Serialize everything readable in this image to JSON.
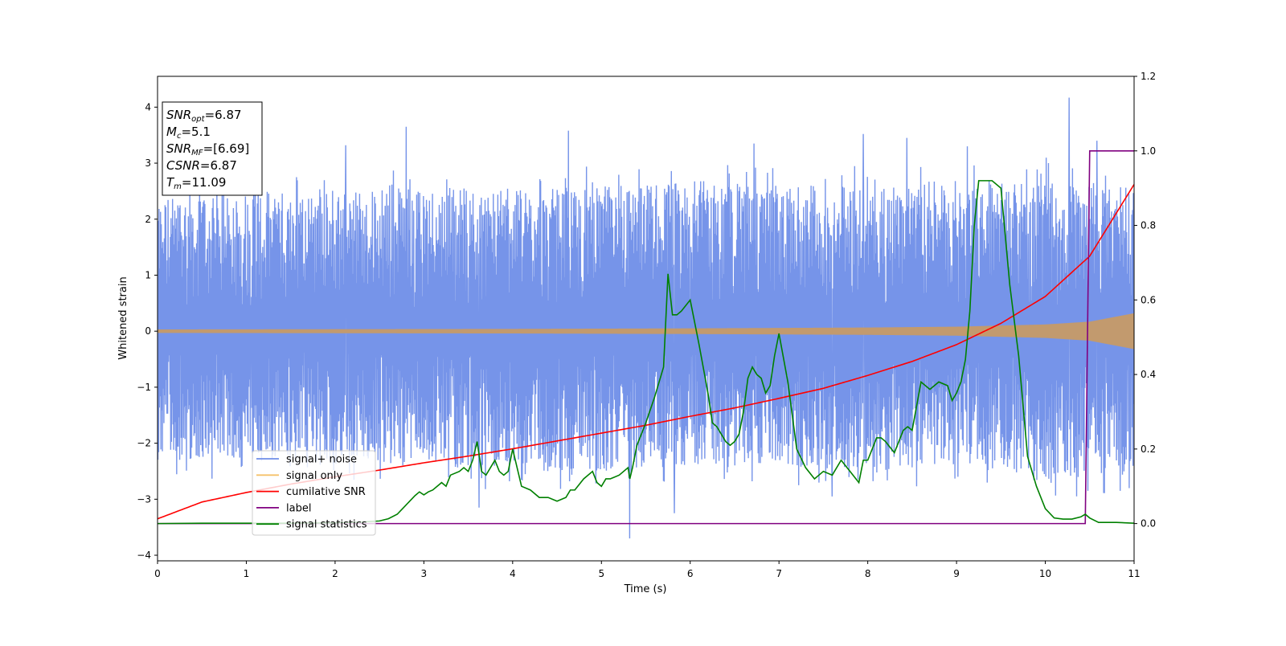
{
  "chart_data": {
    "type": "line",
    "xlabel": "Time (s)",
    "ylabel": "Whitened strain",
    "xlim": [
      0,
      11
    ],
    "ylim": [
      -4.1,
      4.55
    ],
    "y2lim": [
      -0.1,
      1.2
    ],
    "grid": false,
    "legend_position": "lower-left",
    "x_ticks": [
      "0",
      "1",
      "2",
      "3",
      "4",
      "5",
      "6",
      "7",
      "8",
      "9",
      "10",
      "11"
    ],
    "y_ticks": [
      "4",
      "3",
      "2",
      "1",
      "0",
      "−1",
      "−2",
      "−3",
      "−4"
    ],
    "y2_ticks": [
      "1.2",
      "1.0",
      "0.8",
      "0.6",
      "0.4",
      "0.2",
      "0.0"
    ],
    "info_box": [
      {
        "base": "SNR",
        "sub": "opt",
        "rest": "=6.87"
      },
      {
        "base": "M",
        "sub": "c",
        "rest": "=5.1"
      },
      {
        "base": "SNR",
        "sub": "MF",
        "rest": "=[6.69]"
      },
      {
        "base": "CSNR",
        "sub": "",
        "rest": "=6.87"
      },
      {
        "base": "T",
        "sub": "m",
        "rest": "=11.09"
      }
    ],
    "series": [
      {
        "name": "signal+ noise",
        "color": "#6f8ee8",
        "axis": "left",
        "description_envelope": {
          "x": [
            0,
            1,
            2,
            3,
            4,
            5,
            6,
            7,
            8,
            9,
            10,
            11
          ],
          "typical_upper": [
            2.4,
            2.5,
            2.5,
            2.6,
            2.5,
            2.6,
            2.7,
            2.6,
            2.6,
            2.7,
            2.7,
            2.6
          ],
          "typical_lower": [
            -2.3,
            -2.3,
            -2.4,
            -2.4,
            -2.5,
            -2.5,
            -2.4,
            -2.4,
            -2.5,
            -2.4,
            -2.6,
            -2.5
          ]
        },
        "spikes": [
          {
            "x": 2.8,
            "y": 3.65
          },
          {
            "x": 4.63,
            "y": 3.58
          },
          {
            "x": 7.95,
            "y": 3.52
          },
          {
            "x": 10.27,
            "y": 4.17
          },
          {
            "x": 10.58,
            "y": 3.4
          },
          {
            "x": 5.32,
            "y": -3.7
          },
          {
            "x": 5.82,
            "y": -3.25
          },
          {
            "x": 3.62,
            "y": -3.15
          },
          {
            "x": 1.1,
            "y": 3.3
          },
          {
            "x": 2.12,
            "y": 3.32
          },
          {
            "x": 6.72,
            "y": 3.35
          },
          {
            "x": 8.44,
            "y": 3.45
          },
          {
            "x": 9.12,
            "y": 3.3
          },
          {
            "x": 10.48,
            "y": -2.85
          },
          {
            "x": 7.6,
            "y": -2.95
          }
        ]
      },
      {
        "name": "signal only",
        "color": "#f5c26b",
        "axis": "left",
        "envelope_x": [
          0,
          2,
          4,
          6,
          8,
          9,
          10,
          10.5,
          11
        ],
        "envelope_amp": [
          0.03,
          0.035,
          0.04,
          0.05,
          0.065,
          0.08,
          0.12,
          0.17,
          0.32
        ]
      },
      {
        "name": "cumilative SNR",
        "color": "#ff0000",
        "axis": "left",
        "x": [
          0,
          0.5,
          1,
          1.5,
          2,
          2.5,
          3,
          3.5,
          4,
          4.5,
          5,
          5.5,
          6,
          6.5,
          7,
          7.5,
          8,
          8.5,
          9,
          9.5,
          10,
          10.5,
          11
        ],
        "y": [
          -3.35,
          -3.05,
          -2.88,
          -2.73,
          -2.6,
          -2.48,
          -2.35,
          -2.23,
          -2.1,
          -1.96,
          -1.82,
          -1.68,
          -1.52,
          -1.37,
          -1.2,
          -1.02,
          -0.79,
          -0.54,
          -0.24,
          0.14,
          0.62,
          1.34,
          2.62
        ]
      },
      {
        "name": "label",
        "color": "#800080",
        "axis": "right",
        "x": [
          0,
          10.45,
          10.5,
          11
        ],
        "y": [
          0,
          0,
          1,
          1
        ]
      },
      {
        "name": "signal statistics",
        "color": "#008000",
        "axis": "right",
        "x": [
          0,
          0.5,
          1,
          1.5,
          2,
          2.3,
          2.5,
          2.6,
          2.7,
          2.8,
          2.9,
          2.95,
          3.0,
          3.05,
          3.1,
          3.2,
          3.25,
          3.3,
          3.4,
          3.45,
          3.5,
          3.55,
          3.6,
          3.65,
          3.7,
          3.75,
          3.8,
          3.85,
          3.9,
          3.95,
          4.0,
          4.1,
          4.2,
          4.3,
          4.4,
          4.5,
          4.6,
          4.65,
          4.7,
          4.8,
          4.9,
          4.95,
          5.0,
          5.05,
          5.1,
          5.2,
          5.3,
          5.32,
          5.35,
          5.4,
          5.5,
          5.6,
          5.7,
          5.75,
          5.8,
          5.85,
          5.9,
          6.0,
          6.1,
          6.2,
          6.25,
          6.3,
          6.35,
          6.4,
          6.45,
          6.5,
          6.55,
          6.6,
          6.65,
          6.7,
          6.75,
          6.8,
          6.85,
          6.9,
          6.95,
          7.0,
          7.1,
          7.2,
          7.3,
          7.4,
          7.5,
          7.6,
          7.7,
          7.8,
          7.9,
          7.95,
          8.0,
          8.1,
          8.15,
          8.2,
          8.3,
          8.4,
          8.45,
          8.5,
          8.6,
          8.7,
          8.8,
          8.9,
          8.95,
          9.0,
          9.05,
          9.1,
          9.15,
          9.2,
          9.25,
          9.3,
          9.4,
          9.5,
          9.6,
          9.7,
          9.8,
          9.9,
          10.0,
          10.1,
          10.2,
          10.3,
          10.4,
          10.45,
          10.5,
          10.6,
          10.8,
          11
        ],
        "y": [
          0.0,
          0.001,
          0.001,
          0.001,
          0.002,
          0.004,
          0.007,
          0.013,
          0.025,
          0.05,
          0.075,
          0.085,
          0.077,
          0.085,
          0.09,
          0.11,
          0.1,
          0.13,
          0.14,
          0.15,
          0.14,
          0.17,
          0.22,
          0.14,
          0.13,
          0.15,
          0.17,
          0.14,
          0.13,
          0.14,
          0.2,
          0.1,
          0.09,
          0.07,
          0.07,
          0.06,
          0.07,
          0.09,
          0.09,
          0.12,
          0.14,
          0.11,
          0.1,
          0.12,
          0.12,
          0.13,
          0.15,
          0.12,
          0.15,
          0.21,
          0.27,
          0.34,
          0.42,
          0.67,
          0.56,
          0.56,
          0.57,
          0.6,
          0.48,
          0.35,
          0.27,
          0.26,
          0.24,
          0.22,
          0.21,
          0.22,
          0.24,
          0.3,
          0.39,
          0.42,
          0.4,
          0.39,
          0.35,
          0.37,
          0.45,
          0.51,
          0.38,
          0.2,
          0.15,
          0.12,
          0.14,
          0.13,
          0.17,
          0.14,
          0.11,
          0.17,
          0.17,
          0.23,
          0.23,
          0.22,
          0.19,
          0.25,
          0.26,
          0.25,
          0.38,
          0.36,
          0.38,
          0.37,
          0.33,
          0.35,
          0.38,
          0.44,
          0.57,
          0.8,
          0.92,
          0.92,
          0.92,
          0.9,
          0.64,
          0.45,
          0.18,
          0.1,
          0.04,
          0.015,
          0.012,
          0.012,
          0.018,
          0.025,
          0.015,
          0.003,
          0.003,
          0.001
        ]
      }
    ]
  },
  "legend": [
    {
      "label": "signal+ noise",
      "color": "#6f8ee8"
    },
    {
      "label": "signal only",
      "color": "#f5c26b"
    },
    {
      "label": "cumilative SNR",
      "color": "#ff0000"
    },
    {
      "label": "label",
      "color": "#800080"
    },
    {
      "label": "signal statistics",
      "color": "#008000"
    }
  ]
}
